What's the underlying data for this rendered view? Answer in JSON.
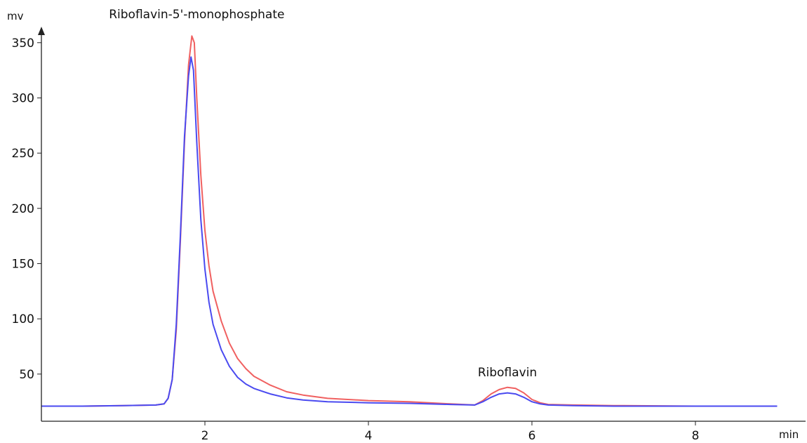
{
  "chart_data": {
    "type": "line",
    "title": "",
    "xlabel": "min",
    "ylabel": "mv",
    "xlim": [
      0,
      9.3
    ],
    "ylim": [
      0,
      360
    ],
    "xticks": [
      2,
      4,
      6,
      8
    ],
    "yticks": [
      50,
      100,
      150,
      200,
      250,
      300,
      350
    ],
    "grid": false,
    "legend": "none",
    "annotations": [
      {
        "text": "Riboflavin-5'-monophosphate",
        "x": 1.9,
        "y": 360
      },
      {
        "text": "Riboflavin",
        "x": 5.7,
        "y": 48
      }
    ],
    "series": [
      {
        "color": "#f06060",
        "x": [
          0,
          0.5,
          1.0,
          1.4,
          1.5,
          1.55,
          1.6,
          1.65,
          1.7,
          1.75,
          1.8,
          1.84,
          1.87,
          1.9,
          1.95,
          2.0,
          2.05,
          2.1,
          2.2,
          2.3,
          2.4,
          2.5,
          2.6,
          2.8,
          3.0,
          3.2,
          3.5,
          4.0,
          4.5,
          5.0,
          5.3,
          5.4,
          5.5,
          5.6,
          5.7,
          5.8,
          5.9,
          6.0,
          6.1,
          6.2,
          6.5,
          7.0,
          8.0,
          9.0
        ],
        "y": [
          21,
          21,
          21.5,
          22,
          23,
          28,
          45,
          90,
          170,
          260,
          330,
          356,
          350,
          300,
          230,
          180,
          148,
          125,
          98,
          78,
          64,
          55,
          48,
          40,
          34,
          31,
          28,
          26,
          25,
          23,
          22,
          26,
          32,
          36,
          38,
          37,
          33,
          27,
          24,
          22.5,
          22,
          21.5,
          21,
          21
        ]
      },
      {
        "color": "#4a4af0",
        "x": [
          0,
          0.5,
          1.0,
          1.4,
          1.5,
          1.55,
          1.6,
          1.65,
          1.7,
          1.75,
          1.8,
          1.83,
          1.86,
          1.9,
          1.95,
          2.0,
          2.05,
          2.1,
          2.2,
          2.3,
          2.4,
          2.5,
          2.6,
          2.8,
          3.0,
          3.2,
          3.5,
          4.0,
          4.5,
          5.0,
          5.3,
          5.4,
          5.5,
          5.6,
          5.7,
          5.8,
          5.9,
          6.0,
          6.1,
          6.2,
          6.5,
          7.0,
          8.0,
          9.0
        ],
        "y": [
          21,
          21,
          21.5,
          22,
          23,
          28,
          45,
          95,
          175,
          265,
          320,
          337,
          325,
          260,
          190,
          145,
          115,
          95,
          72,
          57,
          47,
          41,
          37,
          32,
          28.5,
          26.5,
          25,
          24,
          23.5,
          22.5,
          22,
          25,
          29,
          32,
          33,
          32,
          29,
          25,
          23,
          22,
          21.5,
          21,
          21,
          21
        ]
      }
    ]
  }
}
